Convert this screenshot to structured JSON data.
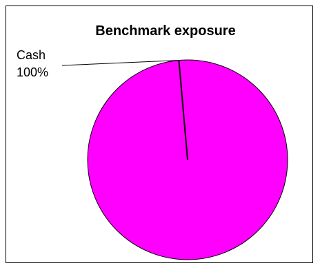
{
  "chart_data": {
    "type": "pie",
    "title": "Benchmark exposure",
    "slices": [
      {
        "label": "Cash",
        "value": 100,
        "value_label": "100%",
        "color": "#ff00ff"
      }
    ],
    "legend": "none"
  }
}
